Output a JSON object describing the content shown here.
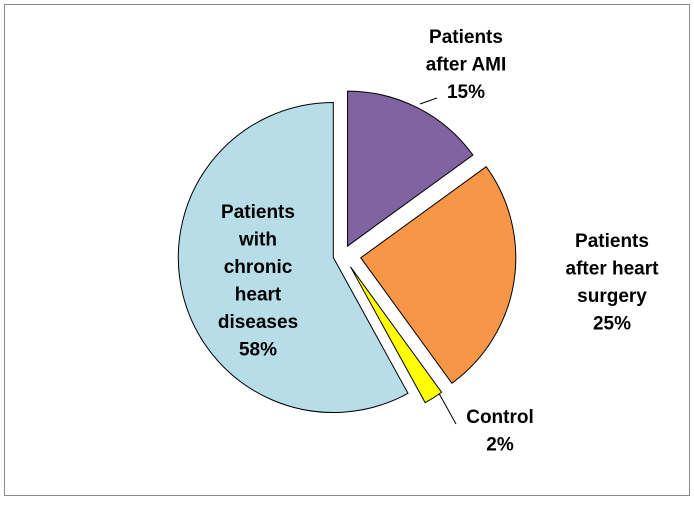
{
  "chart_data": {
    "type": "pie",
    "categories": [
      "Patients after AMI",
      "Patients after heart surgery",
      "Control",
      "Patients with chronic heart diseases"
    ],
    "values": [
      15,
      25,
      2,
      58
    ],
    "value_labels": [
      "15%",
      "25%",
      "2%",
      "58%"
    ],
    "colors": [
      "#8064a2",
      "#f79646",
      "#ffff00",
      "#b7dde8"
    ]
  }
}
